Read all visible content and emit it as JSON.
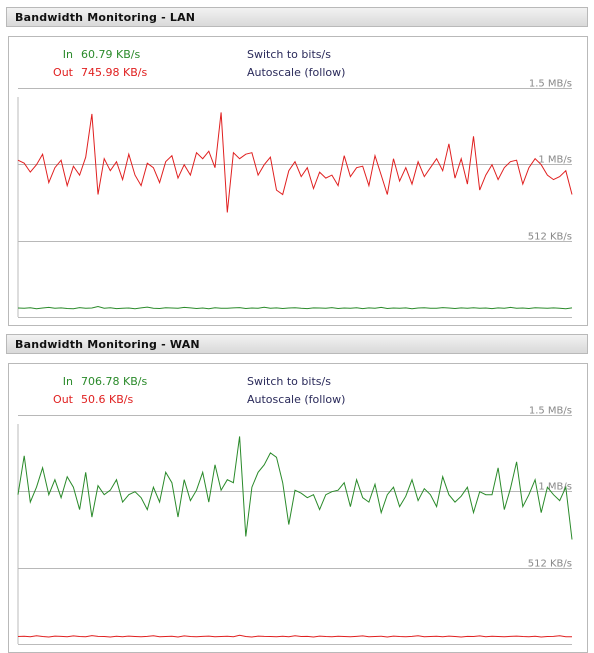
{
  "panels": [
    {
      "title": "Bandwidth Monitoring - LAN",
      "in_label": "In",
      "in_value": "60.79 KB/s",
      "out_label": "Out",
      "out_value": "745.98 KB/s",
      "switch_label": "Switch to bits/s",
      "autoscale_label": "Autoscale (follow)",
      "chart_data": {
        "type": "line",
        "y_unit": "KB/s",
        "ylim": [
          0,
          1875
        ],
        "y_ticks": [
          {
            "value": 512,
            "label": "512 KB/s"
          },
          {
            "value": 1024,
            "label": "1 MB/s"
          },
          {
            "value": 1536,
            "label": "1.5 MB/s"
          }
        ],
        "series": [
          {
            "name": "In",
            "color": "#2a8a2a",
            "values": [
              60,
              58,
              62,
              55,
              60,
              64,
              58,
              61,
              57,
              55,
              63,
              58,
              60,
              70,
              59,
              62,
              56,
              58,
              60,
              55,
              61,
              66,
              59,
              57,
              62,
              60,
              58,
              64,
              61,
              57,
              60,
              55,
              62,
              59,
              58,
              61,
              63,
              57,
              60,
              58,
              65,
              59,
              61,
              57,
              60,
              62,
              58,
              56,
              61,
              60,
              59,
              63,
              57,
              60,
              58,
              62,
              56,
              61,
              59,
              64,
              57,
              60,
              58,
              61,
              55,
              60,
              62,
              59,
              58,
              63,
              60,
              57,
              61,
              59,
              62,
              58,
              60,
              56,
              61,
              59,
              64,
              58,
              60,
              57,
              62,
              60,
              59,
              61,
              58,
              55,
              61
            ]
          },
          {
            "name": "Out",
            "color": "#e02020",
            "values": [
              1050,
              1030,
              970,
              1020,
              1090,
              900,
              1000,
              1050,
              880,
              1010,
              950,
              1070,
              1360,
              820,
              1060,
              980,
              1040,
              920,
              1090,
              950,
              880,
              1030,
              1000,
              900,
              1040,
              1080,
              930,
              1020,
              950,
              1100,
              1060,
              1110,
              1000,
              1370,
              700,
              1100,
              1060,
              1090,
              1100,
              950,
              1020,
              1070,
              850,
              820,
              980,
              1040,
              940,
              1000,
              860,
              970,
              930,
              950,
              880,
              1080,
              940,
              1000,
              1010,
              880,
              1080,
              950,
              820,
              1060,
              910,
              1000,
              890,
              1040,
              940,
              1000,
              1060,
              980,
              1160,
              930,
              1060,
              890,
              1210,
              850,
              950,
              1020,
              920,
              1000,
              1040,
              1050,
              890,
              1000,
              1060,
              1020,
              950,
              920,
              940,
              980,
              820
            ]
          }
        ]
      }
    },
    {
      "title": "Bandwidth Monitoring - WAN",
      "in_label": "In",
      "in_value": "706.78 KB/s",
      "out_label": "Out",
      "out_value": "50.6 KB/s",
      "switch_label": "Switch to bits/s",
      "autoscale_label": "Autoscale (follow)",
      "chart_data": {
        "type": "line",
        "y_unit": "KB/s",
        "ylim": [
          0,
          1875
        ],
        "y_ticks": [
          {
            "value": 512,
            "label": "512 KB/s"
          },
          {
            "value": 1024,
            "label": "1 MB/s"
          },
          {
            "value": 1536,
            "label": "1.5 MB/s"
          }
        ],
        "series": [
          {
            "name": "In",
            "color": "#2a8a2a",
            "values": [
              1000,
              1260,
              950,
              1050,
              1180,
              1000,
              1100,
              980,
              1120,
              1050,
              900,
              1150,
              850,
              1060,
              1000,
              1030,
              1100,
              950,
              1000,
              1020,
              980,
              900,
              1050,
              950,
              1150,
              1080,
              850,
              1100,
              960,
              1030,
              1150,
              950,
              1200,
              1030,
              1100,
              1080,
              1390,
              720,
              1050,
              1150,
              1200,
              1280,
              1250,
              1080,
              800,
              1030,
              1010,
              980,
              1000,
              900,
              1000,
              1020,
              1030,
              1080,
              920,
              1100,
              980,
              950,
              1070,
              880,
              1000,
              1050,
              920,
              990,
              1100,
              960,
              1040,
              1000,
              920,
              1120,
              1000,
              950,
              990,
              1050,
              880,
              1020,
              1000,
              1000,
              1180,
              900,
              1040,
              1220,
              920,
              1000,
              1100,
              880,
              1050,
              1000,
              960,
              1050,
              700
            ]
          },
          {
            "name": "Out",
            "color": "#e02020",
            "values": [
              50,
              52,
              48,
              55,
              50,
              47,
              53,
              51,
              49,
              54,
              50,
              48,
              56,
              51,
              50,
              47,
              52,
              49,
              53,
              50,
              48,
              51,
              55,
              49,
              50,
              52,
              47,
              54,
              50,
              49,
              51,
              53,
              48,
              50,
              52,
              49,
              58,
              50,
              47,
              53,
              51,
              50,
              49,
              52,
              48,
              55,
              50,
              51,
              47,
              53,
              50,
              49,
              52,
              50,
              48,
              51,
              54,
              49,
              50,
              52,
              47,
              53,
              50,
              49,
              51,
              55,
              48,
              50,
              52,
              49,
              53,
              50,
              47,
              51,
              50,
              54,
              49,
              52,
              50,
              48,
              51,
              53,
              50,
              49,
              52,
              47,
              50,
              51,
              55,
              49,
              48
            ]
          }
        ]
      }
    }
  ]
}
